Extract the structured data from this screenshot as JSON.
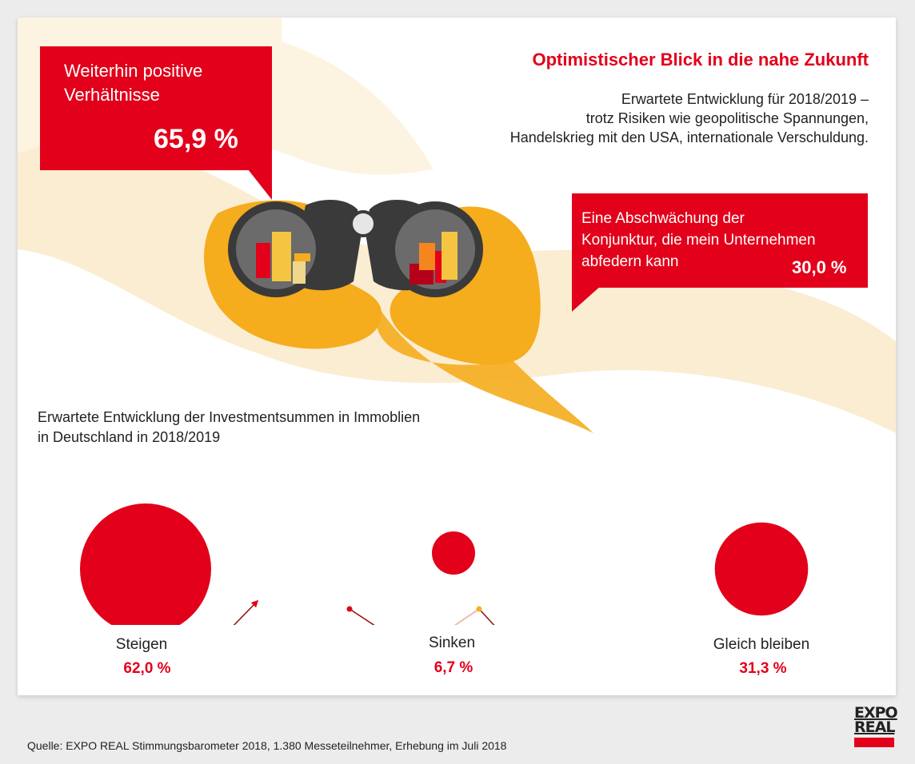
{
  "header": {
    "title": "Optimistischer Blick in die nahe Zukunft",
    "subtitle_lines": [
      "Erwartete Entwicklung für 2018/2019 –",
      "trotz Risiken wie geopolitische Spannungen,",
      "Handelskrieg mit den USA, internationale Verschuldung."
    ]
  },
  "callouts": {
    "positive": {
      "lines": [
        "Weiterhin positive",
        "Verhältnisse"
      ],
      "value": "65,9 %"
    },
    "slowdown": {
      "lines": [
        "Eine Abschwächung der",
        "Konjunktur, die mein Unternehmen",
        "abfedern kann"
      ],
      "value": "30,0 %"
    }
  },
  "section": {
    "title_lines": [
      "Erwartete Entwicklung der Investmentsummen in Immoblien",
      "in Deutschland in 2018/2019"
    ]
  },
  "chart_data": {
    "type": "bubble",
    "title": "Erwartete Entwicklung der Investmentsummen in Immoblien in Deutschland in 2018/2019",
    "categories": [
      "Steigen",
      "Sinken",
      "Gleich bleiben"
    ],
    "values": [
      62.0,
      6.7,
      31.3
    ],
    "value_labels": [
      "62,0 %",
      "6,7 %",
      "31,3 %"
    ],
    "trends": [
      "up",
      "down",
      "flat"
    ],
    "unit": "%"
  },
  "footer": {
    "source": "Quelle: EXPO REAL Stimmungsbarometer 2018, 1.380 Messeteilnehmer, Erhebung im Juli 2018",
    "logo_lines": [
      "EXPO",
      "REAL"
    ]
  },
  "colors": {
    "accent_red": "#e2001a",
    "hand_yellow": "#f5ac1d",
    "wave_beige": "#fbedd2",
    "dot_yellow": "#f5b21d"
  }
}
